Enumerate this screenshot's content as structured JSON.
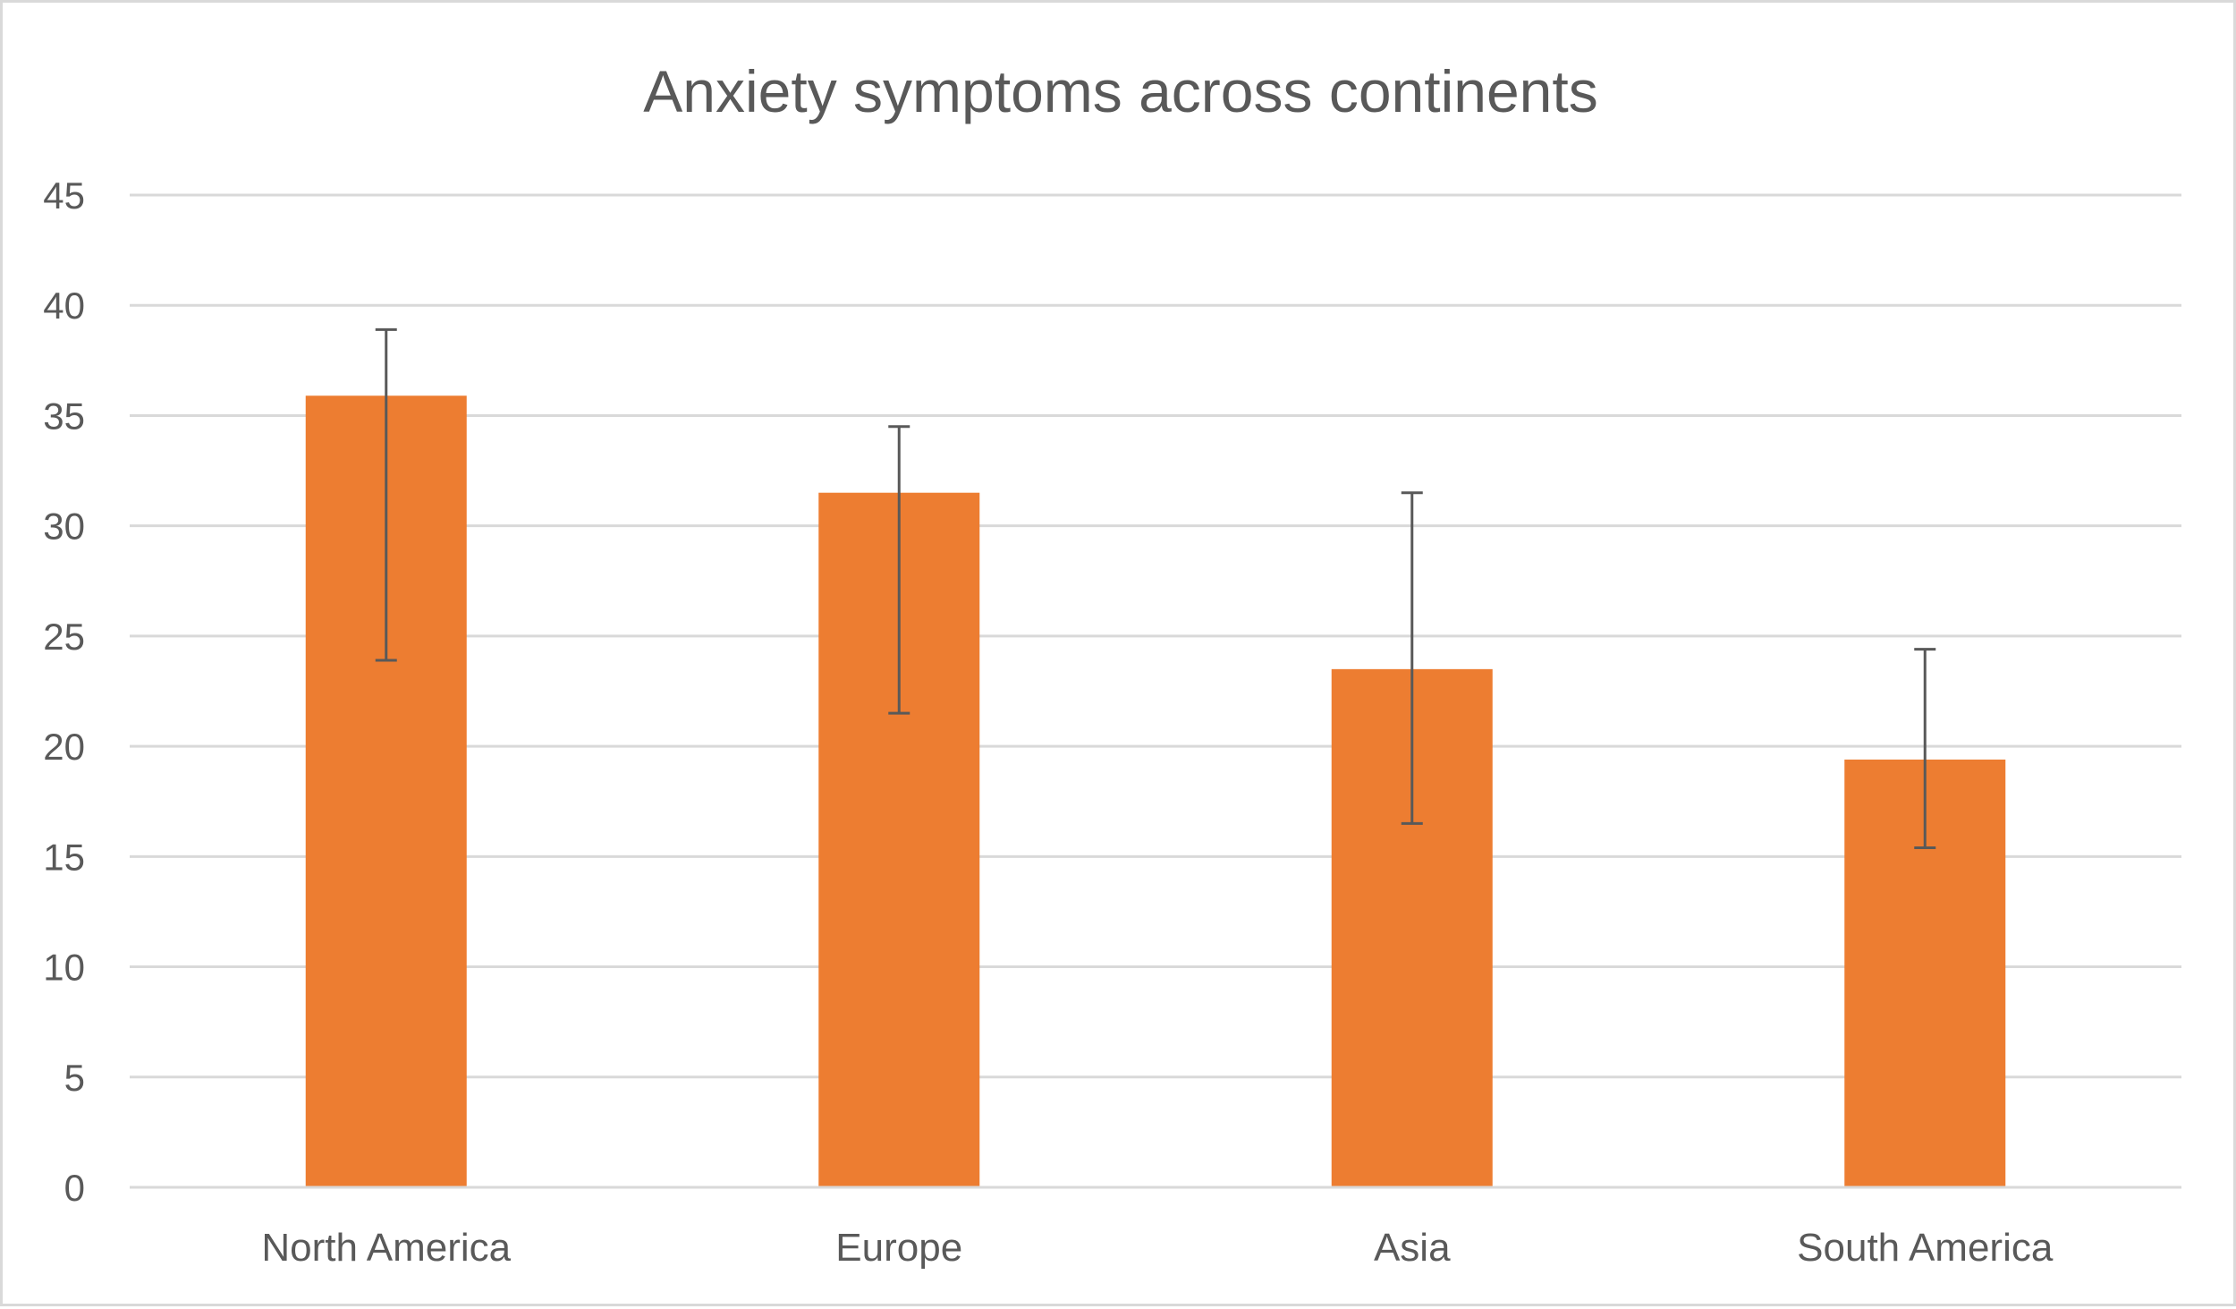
{
  "chart_data": {
    "type": "bar",
    "title": "Anxiety symptoms across continents",
    "xlabel": "",
    "ylabel": "",
    "categories": [
      "North America",
      "Europe",
      "Asia",
      "South America"
    ],
    "values": [
      35.9,
      31.5,
      23.5,
      19.4
    ],
    "error_bars": [
      {
        "low": 23.9,
        "high": 38.9
      },
      {
        "low": 21.5,
        "high": 34.5
      },
      {
        "low": 16.5,
        "high": 31.5
      },
      {
        "low": 15.4,
        "high": 24.4
      }
    ],
    "ylim": [
      0,
      45
    ],
    "yticks": [
      "0",
      "5",
      "10",
      "15",
      "20",
      "25",
      "30",
      "35",
      "40",
      "45"
    ],
    "ytick_values": [
      0,
      5,
      10,
      15,
      20,
      25,
      30,
      35,
      40,
      45
    ],
    "grid": true,
    "legend": "none",
    "colors": {
      "bar": "#ed7d31",
      "error_bar": "#595959",
      "grid": "#d9d9d9",
      "text": "#595959",
      "border": "#d9d9d9"
    }
  }
}
